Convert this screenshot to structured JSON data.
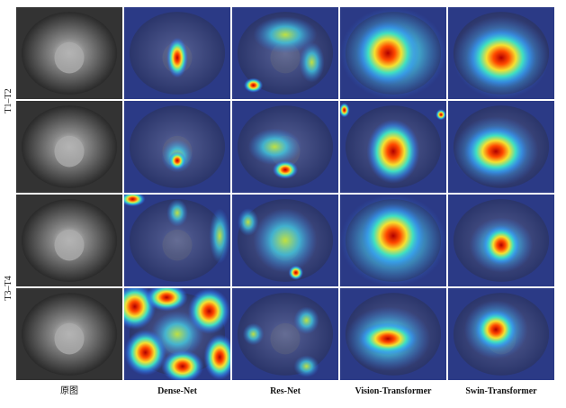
{
  "row_groups": [
    {
      "label": "T1–T2"
    },
    {
      "label": "T3–T4"
    }
  ],
  "columns": [
    {
      "label": "原图"
    },
    {
      "label": "Dense-Net"
    },
    {
      "label": "Res-Net"
    },
    {
      "label": "Vision-Transformer"
    },
    {
      "label": "Swin-Transformer"
    }
  ]
}
